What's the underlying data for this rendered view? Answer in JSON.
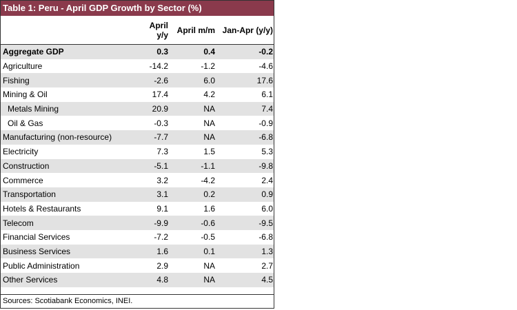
{
  "table": {
    "title": "Table 1: Peru - April GDP Growth by Sector (%)",
    "columns": [
      "",
      "April y/y",
      "April m/m",
      "Jan-Apr (y/y)"
    ],
    "rows": [
      [
        "Aggregate GDP",
        "0.3",
        "0.4",
        "-0.2"
      ],
      [
        "Agriculture",
        "-14.2",
        "-1.2",
        "-4.6"
      ],
      [
        "Fishing",
        "-2.6",
        "6.0",
        "17.6"
      ],
      [
        "Mining & Oil",
        "17.4",
        "4.2",
        "6.1"
      ],
      [
        "Metals Mining",
        "20.9",
        "NA",
        "7.4"
      ],
      [
        "Oil & Gas",
        "-0.3",
        "NA",
        "-0.9"
      ],
      [
        "Manufacturing (non-resource)",
        "-7.7",
        "NA",
        "-6.8"
      ],
      [
        "Electricity",
        "7.3",
        "1.5",
        "5.3"
      ],
      [
        "Construction",
        "-5.1",
        "-1.1",
        "-9.8"
      ],
      [
        "Commerce",
        "3.2",
        "-4.2",
        "2.4"
      ],
      [
        "Transportation",
        "3.1",
        "0.2",
        "0.9"
      ],
      [
        "Hotels & Restaurants",
        "9.1",
        "1.6",
        "6.0"
      ],
      [
        "Telecom",
        "-9.9",
        "-0.6",
        "-9.5"
      ],
      [
        "Financial Services",
        "-7.2",
        "-0.5",
        "-6.8"
      ],
      [
        "Business Services",
        "1.6",
        "0.1",
        "1.3"
      ],
      [
        "Public Administration",
        "2.9",
        "NA",
        "2.7"
      ],
      [
        "Other Services",
        "4.8",
        "NA",
        "4.5"
      ]
    ],
    "source": "Sources: Scotiabank Economics, INEI."
  }
}
